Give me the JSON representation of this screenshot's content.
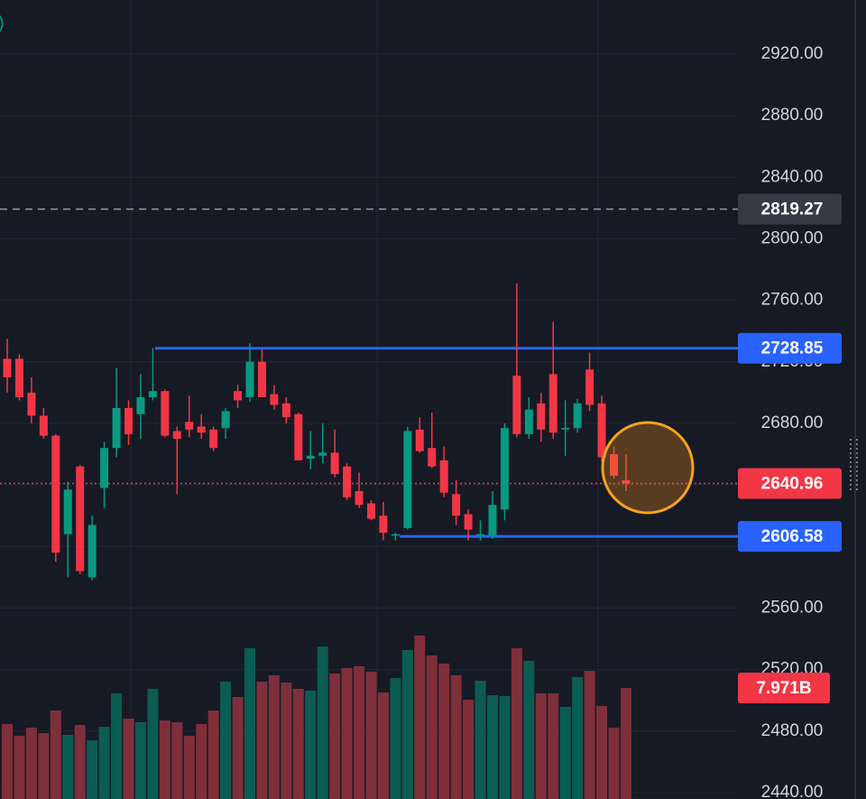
{
  "chart_data": {
    "type": "candlestick",
    "legend_fragment": ")",
    "ylim": [
      2435.85,
      2955.21
    ],
    "yticks": [
      {
        "value": 2440,
        "label": "2440.00"
      },
      {
        "value": 2480,
        "label": "2480.00"
      },
      {
        "value": 2520,
        "label": "2520.00"
      },
      {
        "value": 2560,
        "label": "2560.00"
      },
      {
        "value": 2600,
        "label": "2600.00"
      },
      {
        "value": 2640,
        "label": "2640.00"
      },
      {
        "value": 2680,
        "label": "2680.00"
      },
      {
        "value": 2720,
        "label": "2720.00"
      },
      {
        "value": 2760,
        "label": "2760.00"
      },
      {
        "value": 2800,
        "label": "2800.00"
      },
      {
        "value": 2840,
        "label": "2840.00"
      },
      {
        "value": 2880,
        "label": "2880.00"
      },
      {
        "value": 2920,
        "label": "2920.00"
      }
    ],
    "grid": true,
    "up_color": "#089981",
    "down_color": "#f23645",
    "open": [
      2722,
      2722,
      2700,
      2685,
      2672,
      2608,
      2652,
      2580,
      2638,
      2664,
      2690,
      2686,
      2697,
      2701,
      2675,
      2681,
      2678,
      2676,
      2677,
      2701,
      2697,
      2720,
      2699,
      2693,
      2686,
      2657,
      2659,
      2661,
      2652,
      2636,
      2628,
      2620,
      2607,
      2612,
      2676,
      2664,
      2656,
      2634,
      2621,
      2607,
      2607,
      2624,
      2711,
      2673,
      2693,
      2712,
      2676,
      2677,
      2715,
      2693,
      2660,
      2643
    ],
    "high": [
      2735,
      2725,
      2710,
      2690,
      2673,
      2642,
      2653,
      2620,
      2668,
      2716,
      2695,
      2712,
      2729,
      2702,
      2678,
      2698,
      2686,
      2678,
      2690,
      2705,
      2732,
      2728,
      2705,
      2697,
      2687,
      2675,
      2680,
      2676,
      2654,
      2648,
      2630,
      2629,
      2609,
      2678,
      2684,
      2687,
      2665,
      2643,
      2624,
      2617,
      2636,
      2680,
      2771,
      2697,
      2700,
      2746,
      2695,
      2696,
      2726,
      2698,
      2665,
      2660
    ],
    "low": [
      2700,
      2695,
      2680,
      2670,
      2590,
      2580,
      2582,
      2578,
      2625,
      2658,
      2666,
      2670,
      2695,
      2671,
      2634,
      2671,
      2670,
      2662,
      2670,
      2690,
      2694,
      2697,
      2689,
      2680,
      2656,
      2650,
      2654,
      2645,
      2630,
      2625,
      2617,
      2604,
      2604,
      2611,
      2661,
      2651,
      2632,
      2614,
      2604,
      2604,
      2605,
      2617,
      2671,
      2670,
      2668,
      2670,
      2659,
      2674,
      2688,
      2655,
      2644,
      2636
    ],
    "close": [
      2710,
      2697,
      2685,
      2672,
      2596,
      2637,
      2584,
      2614,
      2664,
      2690,
      2673,
      2697,
      2701,
      2672,
      2670,
      2676,
      2674,
      2664,
      2688,
      2695,
      2720,
      2697,
      2692,
      2684,
      2656,
      2659,
      2661,
      2647,
      2632,
      2627,
      2618,
      2609,
      2608,
      2675,
      2662,
      2652,
      2635,
      2620,
      2611,
      2608,
      2627,
      2677,
      2673,
      2689,
      2676,
      2674,
      2677,
      2693,
      2692,
      2658,
      2646,
      2640.96
    ],
    "volume": {
      "values": [
        5.38,
        4.54,
        5.12,
        4.73,
        6.35,
        4.6,
        5.31,
        4.21,
        5.18,
        7.58,
        5.77,
        5.51,
        7.91,
        5.64,
        5.51,
        4.54,
        5.38,
        6.35,
        8.42,
        7.32,
        10.82,
        8.42,
        8.88,
        8.36,
        7.91,
        7.78,
        10.95,
        9.01,
        9.4,
        9.53,
        9.14,
        7.65,
        8.68,
        10.69,
        11.73,
        10.3,
        9.72,
        8.88,
        7.13,
        8.49,
        7.45,
        7.39,
        10.82,
        9.92,
        7.58,
        7.58,
        6.61,
        8.75,
        9.2,
        6.68,
        5.12,
        7.971
      ],
      "vlim": [
        0,
        19.44
      ],
      "current_label": "7.971B",
      "up_color": "#0b5c52",
      "down_color": "#7e2f3a",
      "label_color": "#f23645"
    },
    "price_levels": [
      {
        "value": 2819.27,
        "style": "dashed",
        "color": "#9598a1",
        "box_color": "#363a45"
      },
      {
        "value": 2728.85,
        "style": "solid",
        "color": "#2962ff",
        "box_color": "#2962ff"
      },
      {
        "value": 2640.96,
        "style": "dotted",
        "color": "#f23645",
        "box_color": "#f23645"
      },
      {
        "value": 2606.58,
        "style": "solid",
        "color": "#2962ff",
        "box_color": "#2962ff"
      }
    ]
  }
}
